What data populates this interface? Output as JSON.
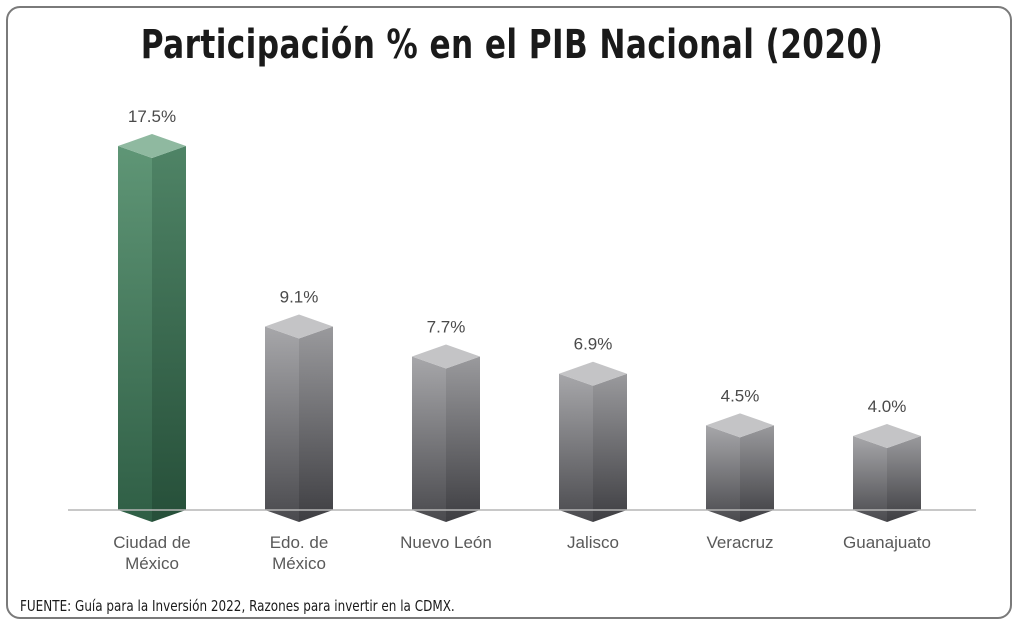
{
  "chart_data": {
    "type": "bar",
    "title": "Participación % en el PIB Nacional (2020)",
    "categories": [
      "Ciudad de México",
      "Edo. de México",
      "Nuevo León",
      "Jalisco",
      "Veracruz",
      "Guanajuato"
    ],
    "category_lines": [
      [
        "Ciudad de",
        "México"
      ],
      [
        "Edo. de",
        "México"
      ],
      [
        "Nuevo León"
      ],
      [
        "Jalisco"
      ],
      [
        "Veracruz"
      ],
      [
        "Guanajuato"
      ]
    ],
    "values": [
      17.5,
      9.1,
      7.7,
      6.9,
      4.5,
      4.0
    ],
    "data_labels": [
      "17.5%",
      "9.1%",
      "7.7%",
      "6.9%",
      "4.5%",
      "4.0%"
    ],
    "highlight_index": 0,
    "colors": {
      "highlight": "#3f7a5a",
      "default": "#7d7d80"
    },
    "xlabel": "",
    "ylabel": "",
    "ylim": [
      0,
      17.5
    ],
    "grid": false
  },
  "source": "FUENTE: Guía para la Inversión 2022, Razones para invertir en la CDMX."
}
